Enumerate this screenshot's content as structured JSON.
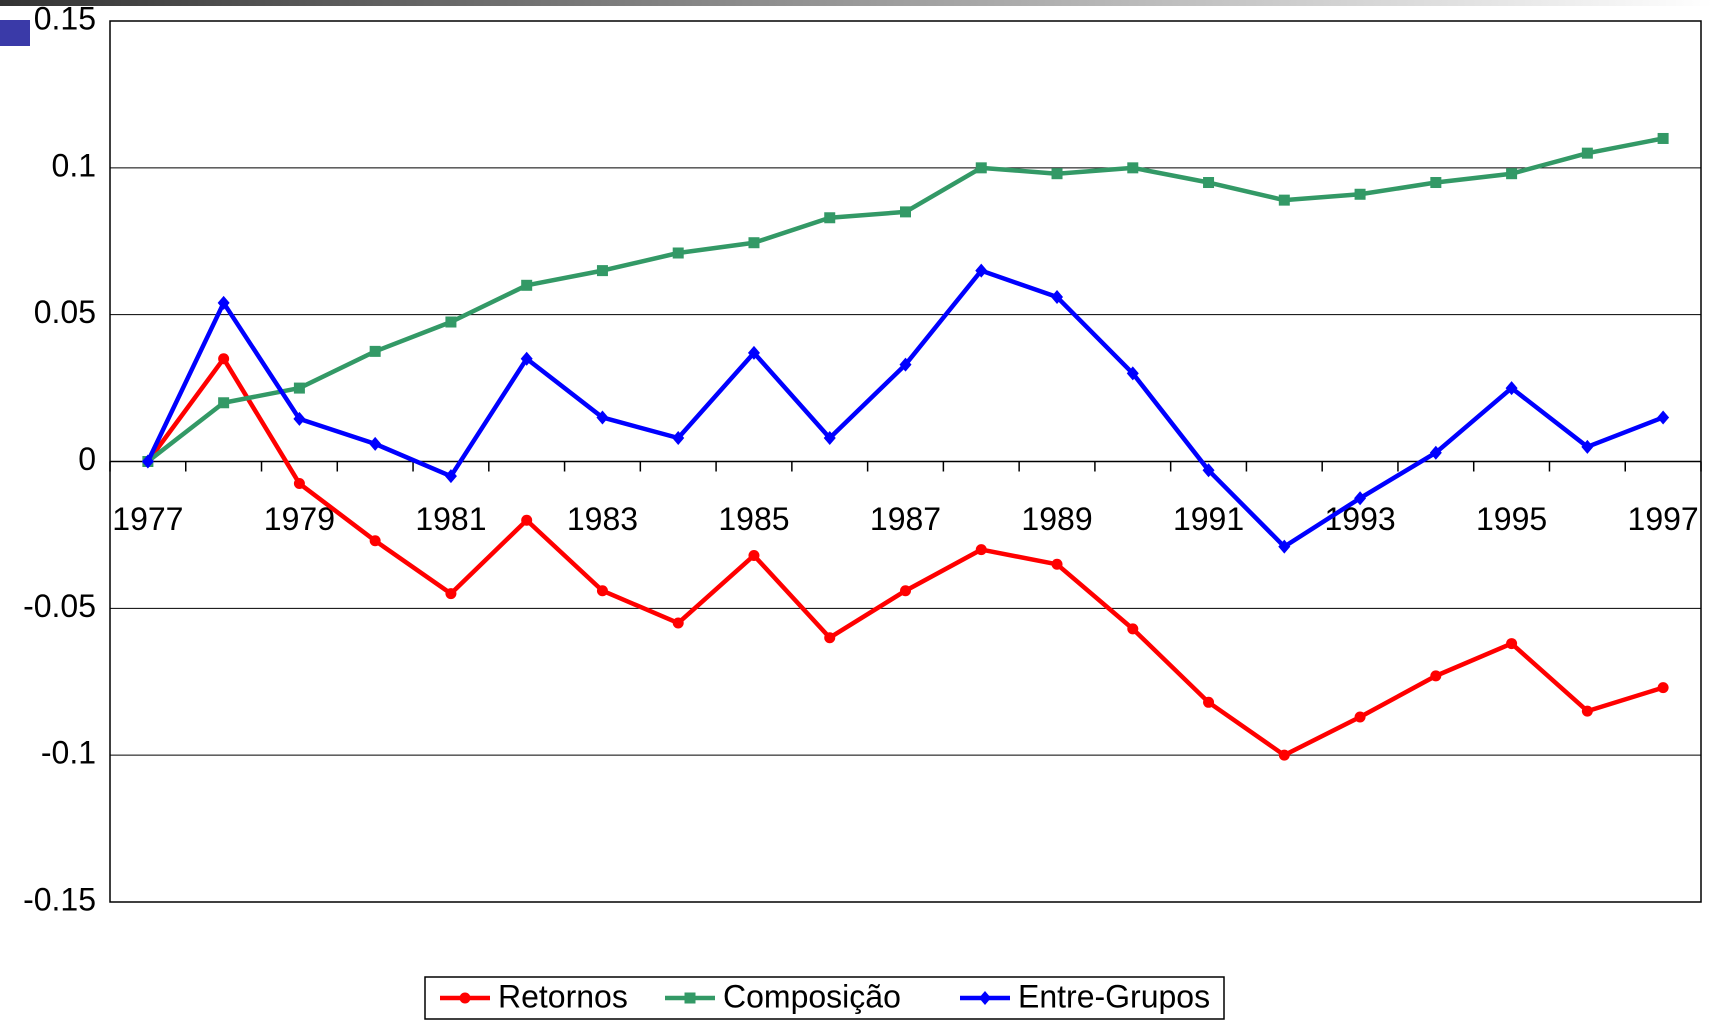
{
  "chart_data": {
    "type": "line",
    "categories": [
      "1977",
      null,
      "1979",
      null,
      "1981",
      null,
      "1983",
      null,
      "1985",
      null,
      "1987",
      null,
      "1989",
      null,
      "1991",
      null,
      "1993",
      null,
      "1995",
      null,
      "1997"
    ],
    "series": [
      {
        "name": "Retornos",
        "color": "#ff0000",
        "marker": "circle",
        "values": [
          0,
          0.035,
          -0.0075,
          -0.027,
          -0.045,
          -0.02,
          -0.044,
          -0.055,
          -0.032,
          -0.06,
          -0.044,
          -0.03,
          -0.035,
          -0.057,
          -0.082,
          -0.1,
          -0.087,
          -0.073,
          -0.062,
          -0.085,
          -0.077
        ]
      },
      {
        "name": "Composição",
        "color": "#339966",
        "marker": "square",
        "values": [
          0,
          0.02,
          0.025,
          0.0375,
          0.0475,
          0.06,
          0.065,
          0.071,
          0.0745,
          0.083,
          0.085,
          0.1,
          0.098,
          0.1,
          0.095,
          0.089,
          0.091,
          0.095,
          0.098,
          0.105,
          0.11
        ]
      },
      {
        "name": "Entre-Grupos",
        "color": "#0000ff",
        "marker": "diamond",
        "values": [
          0,
          0.054,
          0.0145,
          0.006,
          -0.005,
          0.035,
          0.015,
          0.008,
          0.037,
          0.008,
          0.033,
          0.065,
          0.056,
          0.03,
          -0.003,
          -0.029,
          -0.0125,
          0.003,
          0.025,
          0.005,
          0.015
        ]
      }
    ],
    "ylim": [
      -0.15,
      0.15
    ],
    "yticks": [
      -0.15,
      -0.1,
      -0.05,
      0,
      0.05,
      0.1,
      0.15
    ],
    "grid": true,
    "legend": "bottom"
  }
}
